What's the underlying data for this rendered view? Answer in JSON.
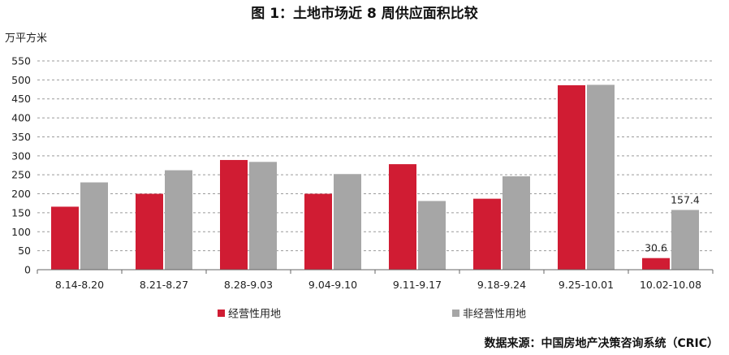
{
  "title": "图 1：土地市场近 8 周供应面积比较",
  "unit_label": "万平方米",
  "source": "数据来源：中国房地产决策咨询系统（CRIC）",
  "colors": {
    "operating": "#d01c33",
    "non_operating": "#a6a6a6"
  },
  "chart_data": {
    "type": "bar",
    "title": "图 1：土地市场近 8 周供应面积比较",
    "xlabel": "",
    "ylabel": "万平方米",
    "ylim": [
      0,
      550
    ],
    "yticks": [
      0,
      50,
      100,
      150,
      200,
      250,
      300,
      350,
      400,
      450,
      500,
      550
    ],
    "grid": true,
    "legend_position": "bottom",
    "categories": [
      "8.14-8.20",
      "8.21-8.27",
      "8.28-9.03",
      "9.04-9.10",
      "9.11-9.17",
      "9.18-9.24",
      "9.25-10.01",
      "10.02-10.08"
    ],
    "series": [
      {
        "name": "经营性用地",
        "color": "#d01c33",
        "values": [
          166,
          200,
          289,
          200,
          278,
          187,
          486,
          30.6
        ]
      },
      {
        "name": "非经营性用地",
        "color": "#a6a6a6",
        "values": [
          230,
          262,
          284,
          252,
          181,
          246,
          487,
          157.4
        ]
      }
    ],
    "annotations": [
      {
        "series": 0,
        "category": "10.02-10.08",
        "text": "30.6"
      },
      {
        "series": 1,
        "category": "10.02-10.08",
        "text": "157.4"
      }
    ]
  }
}
